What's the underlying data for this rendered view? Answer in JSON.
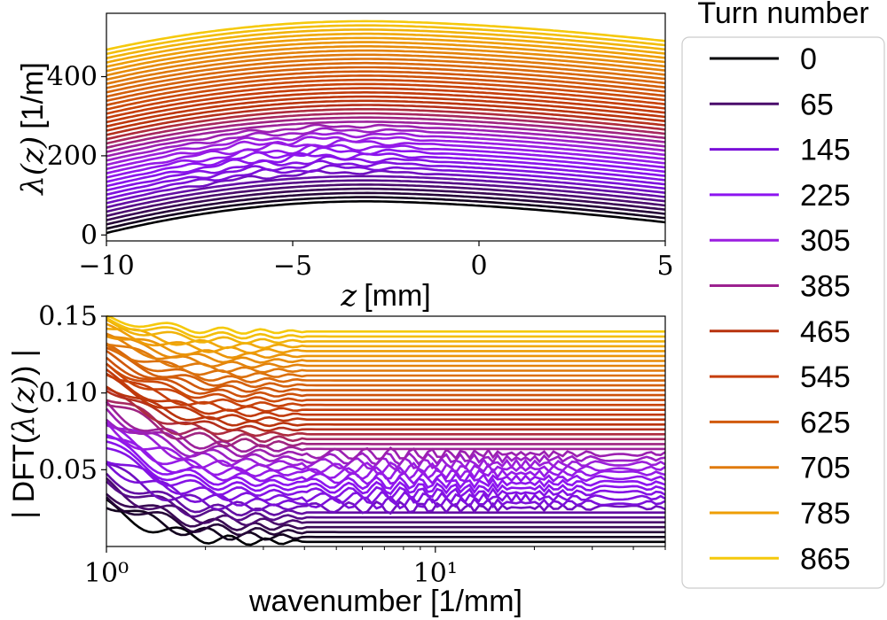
{
  "chart_data": [
    {
      "type": "line",
      "panel": "top",
      "xlabel": "z [mm]",
      "ylabel": "λ(z) [1/m]",
      "xlim": [
        -10,
        5
      ],
      "ylim": [
        -15,
        560
      ],
      "xticks": [
        -10,
        -5,
        0,
        5
      ],
      "xtick_labels": [
        "−10",
        "−5",
        "0",
        "5"
      ],
      "yticks": [
        0,
        200,
        400
      ],
      "ytick_labels": [
        "0",
        "200",
        "400"
      ],
      "grid": false,
      "curve_count": 44,
      "curve_profile": {
        "shape": "broad hump peaking near z = -3 mm",
        "turn_0_endpoints": {
          "z_-10": 5,
          "z_-3": 85,
          "z_5": 32
        },
        "turn_865_endpoints": {
          "z_-10": 468,
          "z_-3": 540,
          "z_5": 490
        },
        "noisy_band": "purple curves (turn ~145-385) show ripples in z between -9 and -1 mm"
      }
    },
    {
      "type": "line",
      "panel": "bottom",
      "xlabel": "wavenumber [1/mm]",
      "ylabel": "| DFT(λ(z)) |",
      "xscale": "log",
      "xlim": [
        1,
        50
      ],
      "ylim": [
        0,
        0.15
      ],
      "yticks": [
        0.05,
        0.1,
        0.15
      ],
      "ytick_labels": [
        "0.05",
        "0.10",
        "0.15"
      ],
      "xticks": [
        1,
        10
      ],
      "xtick_labels": [
        "10⁰",
        "10¹"
      ],
      "grid": false,
      "curve_count": 44,
      "curve_profile": {
        "shape": "decays from low wavenumber to a flat plateau",
        "turn_0": {
          "start": 0.026,
          "plateau": 0.003
        },
        "turn_865": {
          "start": 0.15,
          "plateau": 0.14
        }
      }
    }
  ],
  "legend": {
    "title": "Turn number",
    "placement": "right",
    "entries": [
      {
        "label": "0",
        "color": "#000004"
      },
      {
        "label": "65",
        "color": "#4a0c6b"
      },
      {
        "label": "145",
        "color": "#7a10d8"
      },
      {
        "label": "225",
        "color": "#8c14f0"
      },
      {
        "label": "305",
        "color": "#9b1ee0"
      },
      {
        "label": "385",
        "color": "#9c2290"
      },
      {
        "label": "465",
        "color": "#b8320e"
      },
      {
        "label": "545",
        "color": "#c63e0a"
      },
      {
        "label": "625",
        "color": "#d15a0a"
      },
      {
        "label": "705",
        "color": "#e07a0c"
      },
      {
        "label": "785",
        "color": "#ee9e06"
      },
      {
        "label": "865",
        "color": "#f5c90c"
      }
    ]
  }
}
